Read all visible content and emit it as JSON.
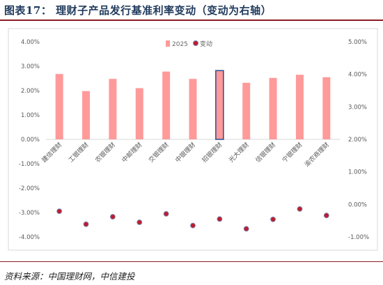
{
  "figure": {
    "title": "图表17：  理财子产品发行基准利率变动（变动为右轴）",
    "source": "资料来源：中国理财网，中信建投"
  },
  "chart_data": {
    "type": "bar",
    "categories": [
      "建信理财",
      "工银理财",
      "农银理财",
      "中邮理财",
      "交银理财",
      "中银理财",
      "招银理财",
      "光大理财",
      "信银理财",
      "宁银理财",
      "渝农商理财"
    ],
    "series": [
      {
        "name": "2025",
        "type": "bar",
        "axis": "left",
        "color": "#ff9a9a",
        "values": [
          2.68,
          1.98,
          2.48,
          2.1,
          2.78,
          2.48,
          2.82,
          2.32,
          2.52,
          2.65,
          2.55
        ]
      },
      {
        "name": "变动",
        "type": "scatter",
        "axis": "right",
        "color": "#c01b2c",
        "values": [
          -0.21,
          -0.61,
          -0.38,
          -0.55,
          -0.29,
          -0.65,
          -0.45,
          -0.75,
          -0.46,
          -0.14,
          -0.34
        ]
      }
    ],
    "highlighted_category": "招银理财",
    "highlight_color": "#2f5597",
    "y_left": {
      "ticks": [
        "4.00%",
        "3.00%",
        "2.00%",
        "1.00%",
        "0.00%",
        "-1.00%",
        "-2.00%",
        "-3.00%",
        "-4.00%"
      ],
      "range": [
        -4,
        4
      ]
    },
    "y_right": {
      "ticks": [
        "5.00%",
        "4.00%",
        "3.00%",
        "2.00%",
        "1.00%",
        "0.00%",
        "-1.00%"
      ],
      "range": [
        -1,
        5
      ]
    },
    "legend": {
      "position": "top-center"
    },
    "grid": false
  }
}
